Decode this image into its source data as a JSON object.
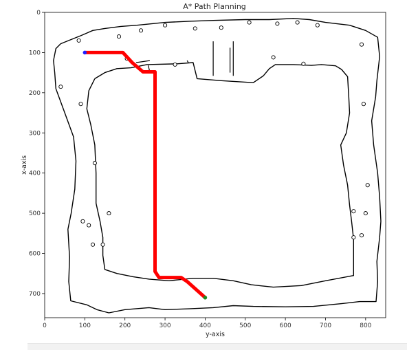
{
  "chart_data": {
    "type": "path-planning-map",
    "title": "A* Path Planning",
    "xlabel": "y-axis",
    "ylabel": "x-axis",
    "xlim": [
      0,
      850
    ],
    "ylim": [
      760,
      0
    ],
    "x_ticks": [
      0,
      100,
      200,
      300,
      400,
      500,
      600,
      700,
      800
    ],
    "y_ticks": [
      0,
      100,
      200,
      300,
      400,
      500,
      600,
      700
    ],
    "start": {
      "x": 100,
      "y": 100,
      "color": "#1f1fff"
    },
    "goal": {
      "x": 400,
      "y": 710,
      "color": "#1f8a1f"
    },
    "path_color": "#ff0000",
    "path": [
      [
        100,
        100
      ],
      [
        195,
        100
      ],
      [
        218,
        125
      ],
      [
        245,
        148
      ],
      [
        275,
        148
      ],
      [
        275,
        645
      ],
      [
        285,
        660
      ],
      [
        340,
        660
      ],
      [
        355,
        670
      ],
      [
        400,
        710
      ]
    ],
    "outer_wall": [
      [
        60,
        70
      ],
      [
        90,
        58
      ],
      [
        120,
        45
      ],
      [
        150,
        40
      ],
      [
        190,
        35
      ],
      [
        230,
        32
      ],
      [
        300,
        25
      ],
      [
        360,
        22
      ],
      [
        420,
        20
      ],
      [
        500,
        18
      ],
      [
        560,
        18
      ],
      [
        620,
        15
      ],
      [
        660,
        18
      ],
      [
        700,
        25
      ],
      [
        760,
        32
      ],
      [
        800,
        45
      ],
      [
        830,
        62
      ],
      [
        835,
        110
      ],
      [
        828,
        170
      ],
      [
        825,
        210
      ],
      [
        815,
        270
      ],
      [
        820,
        330
      ],
      [
        830,
        400
      ],
      [
        835,
        460
      ],
      [
        838,
        520
      ],
      [
        835,
        560
      ],
      [
        828,
        620
      ],
      [
        830,
        670
      ],
      [
        826,
        720
      ],
      [
        785,
        720
      ],
      [
        740,
        725
      ],
      [
        670,
        732
      ],
      [
        600,
        733
      ],
      [
        520,
        732
      ],
      [
        470,
        730
      ],
      [
        420,
        735
      ],
      [
        360,
        738
      ],
      [
        300,
        740
      ],
      [
        260,
        735
      ],
      [
        200,
        740
      ],
      [
        160,
        748
      ],
      [
        130,
        740
      ],
      [
        105,
        728
      ],
      [
        65,
        718
      ],
      [
        60,
        670
      ],
      [
        62,
        610
      ],
      [
        58,
        540
      ],
      [
        66,
        500
      ],
      [
        75,
        440
      ],
      [
        78,
        370
      ],
      [
        72,
        310
      ],
      [
        50,
        250
      ],
      [
        28,
        190
      ],
      [
        25,
        150
      ],
      [
        22,
        120
      ],
      [
        28,
        90
      ],
      [
        40,
        78
      ],
      [
        60,
        70
      ]
    ],
    "inner_wall": [
      [
        125,
        165
      ],
      [
        150,
        150
      ],
      [
        180,
        140
      ],
      [
        215,
        138
      ],
      [
        255,
        130
      ],
      [
        330,
        128
      ],
      [
        370,
        125
      ],
      [
        380,
        165
      ],
      [
        440,
        170
      ],
      [
        520,
        175
      ],
      [
        545,
        158
      ],
      [
        560,
        140
      ],
      [
        575,
        130
      ],
      [
        620,
        130
      ],
      [
        665,
        132
      ],
      [
        690,
        130
      ],
      [
        725,
        133
      ],
      [
        740,
        142
      ],
      [
        755,
        160
      ],
      [
        758,
        210
      ],
      [
        760,
        250
      ],
      [
        752,
        300
      ],
      [
        738,
        330
      ],
      [
        745,
        380
      ],
      [
        755,
        430
      ],
      [
        760,
        480
      ],
      [
        765,
        520
      ],
      [
        770,
        565
      ],
      [
        770,
        610
      ],
      [
        770,
        655
      ],
      [
        700,
        668
      ],
      [
        640,
        680
      ],
      [
        570,
        684
      ],
      [
        515,
        678
      ],
      [
        470,
        668
      ],
      [
        420,
        662
      ],
      [
        370,
        662
      ],
      [
        310,
        668
      ],
      [
        260,
        664
      ],
      [
        220,
        658
      ],
      [
        180,
        650
      ],
      [
        150,
        640
      ],
      [
        145,
        605
      ],
      [
        145,
        560
      ],
      [
        138,
        520
      ],
      [
        128,
        475
      ],
      [
        128,
        400
      ],
      [
        125,
        330
      ],
      [
        115,
        280
      ],
      [
        105,
        240
      ],
      [
        110,
        195
      ],
      [
        125,
        165
      ]
    ],
    "partitions": [
      [
        [
          420,
          72
        ],
        [
          420,
          158
        ]
      ],
      [
        [
          470,
          72
        ],
        [
          470,
          158
        ]
      ],
      [
        [
          462,
          88
        ],
        [
          462,
          150
        ]
      ],
      [
        [
          228,
          125
        ],
        [
          262,
          120
        ]
      ],
      [
        [
          258,
          132
        ],
        [
          262,
          148
        ]
      ],
      [
        [
          355,
          120
        ],
        [
          358,
          125
        ]
      ]
    ],
    "circular_obstacles": [
      [
        85,
        70
      ],
      [
        185,
        60
      ],
      [
        240,
        45
      ],
      [
        300,
        32
      ],
      [
        375,
        40
      ],
      [
        440,
        38
      ],
      [
        510,
        25
      ],
      [
        580,
        28
      ],
      [
        630,
        25
      ],
      [
        680,
        32
      ],
      [
        790,
        80
      ],
      [
        570,
        112
      ],
      [
        645,
        128
      ],
      [
        40,
        185
      ],
      [
        90,
        228
      ],
      [
        795,
        228
      ],
      [
        125,
        375
      ],
      [
        805,
        430
      ],
      [
        160,
        500
      ],
      [
        95,
        520
      ],
      [
        110,
        530
      ],
      [
        770,
        495
      ],
      [
        790,
        555
      ],
      [
        770,
        560
      ],
      [
        800,
        500
      ],
      [
        120,
        578
      ],
      [
        145,
        578
      ],
      [
        205,
        115
      ],
      [
        325,
        130
      ]
    ]
  }
}
